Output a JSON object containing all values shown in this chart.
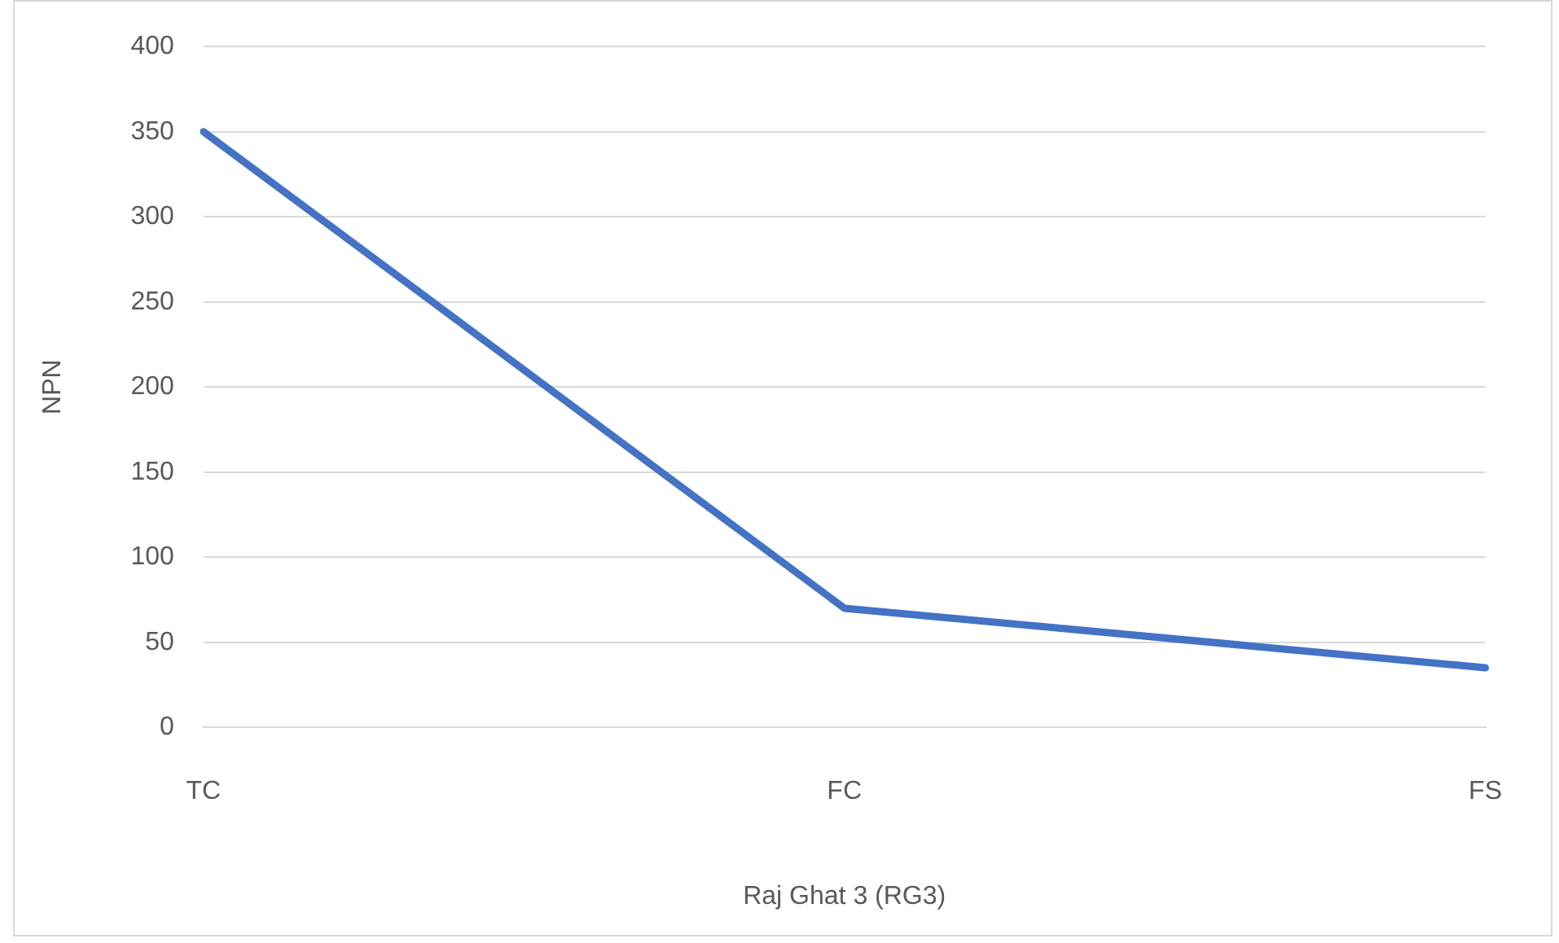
{
  "chart_data": {
    "type": "line",
    "xlabel": "Raj Ghat 3 (RG3)",
    "ylabel": "NPN",
    "categories": [
      "TC",
      "FC",
      "FS"
    ],
    "series": [
      {
        "color": "#4472c4",
        "values": [
          350,
          70,
          35
        ]
      }
    ],
    "ylim": [
      0,
      400
    ],
    "yticks": [
      0,
      50,
      100,
      150,
      200,
      250,
      300,
      350,
      400
    ],
    "grid": "y",
    "legend": false,
    "marker": "none",
    "line_style": "solid"
  }
}
